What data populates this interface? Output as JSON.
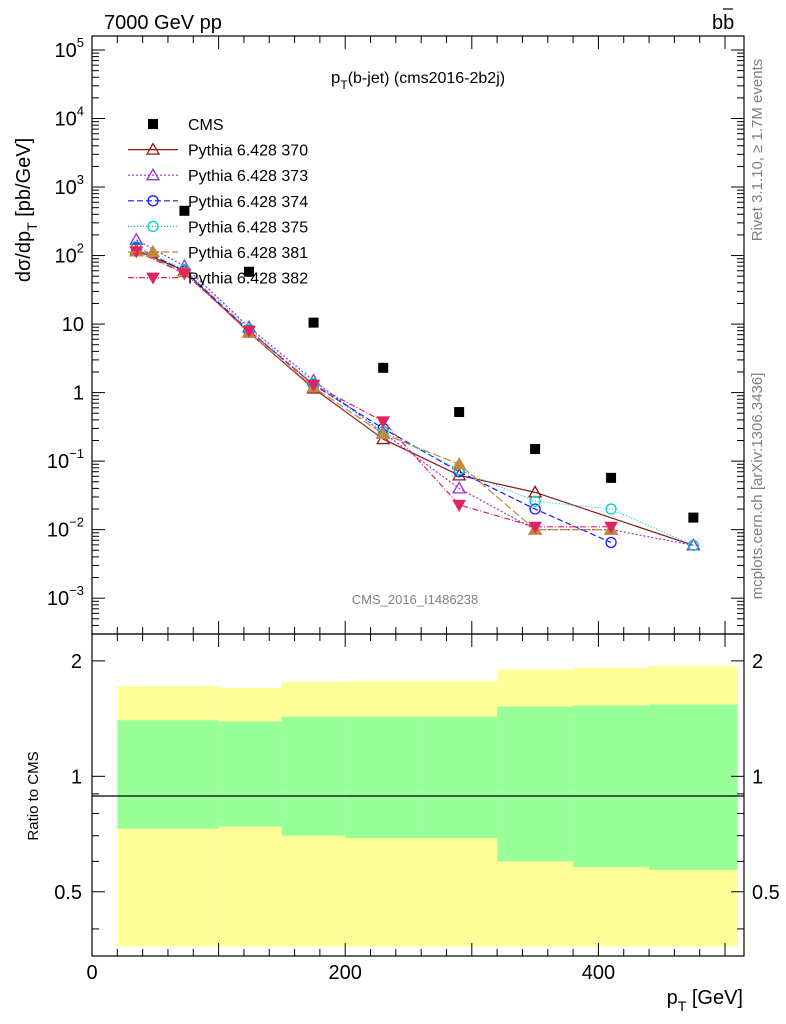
{
  "header": {
    "energy_label": "7000 GeV pp",
    "process_base": "b",
    "process_bar": "b"
  },
  "plot_title": {
    "main": "p",
    "sub": "T",
    "rest": "(b-jet) (cms2016-2b2j)"
  },
  "y_label": {
    "part1": "dσ/dp",
    "sub": "T",
    "part2": " [pb/GeV]"
  },
  "x_label": {
    "main": "p",
    "sub": "T",
    "rest": " [GeV]"
  },
  "ratio_label": "Ratio to CMS",
  "right_side": {
    "rivet_text": "Rivet 3.1.10, ≥ 1.7M events",
    "mcplots_text": "mcplots.cern.ch [arXiv:1306.3436]"
  },
  "watermark": "CMS_2016_I1486238",
  "y_ticks": [
    {
      "v": 100000.0,
      "base": "10",
      "exp": "5"
    },
    {
      "v": 10000.0,
      "base": "10",
      "exp": "4"
    },
    {
      "v": 1000.0,
      "base": "10",
      "exp": "3"
    },
    {
      "v": 100.0,
      "base": "10",
      "exp": "2"
    },
    {
      "v": 10,
      "base": "10",
      "exp": ""
    },
    {
      "v": 1,
      "base": "1",
      "exp": ""
    },
    {
      "v": 0.1,
      "base": "10",
      "exp": "−1"
    },
    {
      "v": 0.01,
      "base": "10",
      "exp": "−2"
    },
    {
      "v": 0.001,
      "base": "10",
      "exp": "−3"
    }
  ],
  "x_ticks": [
    {
      "v": 0,
      "label": "0"
    },
    {
      "v": 200,
      "label": "200"
    },
    {
      "v": 400,
      "label": "400"
    }
  ],
  "ratio_ticks": [
    {
      "v": 2,
      "label": "2"
    },
    {
      "v": 1,
      "label": "1"
    },
    {
      "v": 0.5,
      "label": "0.5"
    }
  ],
  "chart_data": {
    "type": "scatter",
    "x_range": [
      0,
      515
    ],
    "y_range": [
      0.0003,
      160000
    ],
    "y_scale": "log",
    "ratio_range": [
      0.34,
      2.35
    ],
    "legend_position": "top-left",
    "bins": [
      {
        "lo": 20,
        "hi": 100
      },
      {
        "lo": 100,
        "hi": 150
      },
      {
        "lo": 150,
        "hi": 200
      },
      {
        "lo": 200,
        "hi": 260
      },
      {
        "lo": 260,
        "hi": 320
      },
      {
        "lo": 320,
        "hi": 380
      },
      {
        "lo": 380,
        "hi": 440
      },
      {
        "lo": 440,
        "hi": 510
      }
    ],
    "band_inner": [
      [
        0.73,
        1.4
      ],
      [
        0.74,
        1.39
      ],
      [
        0.7,
        1.43
      ],
      [
        0.69,
        1.43
      ],
      [
        0.69,
        1.43
      ],
      [
        0.6,
        1.52
      ],
      [
        0.58,
        1.53
      ],
      [
        0.57,
        1.54
      ]
    ],
    "band_outer": [
      [
        0.36,
        1.72
      ],
      [
        0.36,
        1.7
      ],
      [
        0.36,
        1.76
      ],
      [
        0.36,
        1.77
      ],
      [
        0.36,
        1.77
      ],
      [
        0.36,
        1.9
      ],
      [
        0.36,
        1.92
      ],
      [
        0.36,
        1.94
      ]
    ],
    "series": [
      {
        "name": "CMS",
        "color": "#000000",
        "marker": "square",
        "dash": "",
        "x": [
          73,
          124,
          175,
          230,
          290,
          350,
          410,
          475
        ],
        "y": [
          450,
          58,
          10.5,
          2.3,
          0.52,
          0.15,
          0.057,
          0.015
        ]
      },
      {
        "name": "Pythia 6.428 370",
        "color": "#8b1a1a",
        "marker": "tri-open",
        "dash": "",
        "x": [
          35,
          73,
          124,
          175,
          230,
          290,
          350,
          475
        ],
        "y": [
          120,
          60,
          7.5,
          1.15,
          0.21,
          0.062,
          0.035,
          0.0059
        ]
      },
      {
        "name": "Pythia 6.428 373",
        "color": "#9b30d0",
        "marker": "tri-open",
        "dash": "2,2",
        "x": [
          35,
          73,
          124,
          175,
          230,
          290,
          350,
          410,
          475
        ],
        "y": [
          170,
          70,
          9,
          1.5,
          0.26,
          0.04,
          0.01,
          0.01,
          0.0059
        ]
      },
      {
        "name": "Pythia 6.428 374",
        "color": "#1a1aff",
        "marker": "circle-open",
        "dash": "6,3",
        "x": [
          35,
          73,
          124,
          175,
          230,
          290,
          350,
          410
        ],
        "y": [
          130,
          60,
          8,
          1.3,
          0.3,
          0.07,
          0.02,
          0.0065
        ]
      },
      {
        "name": "Pythia 6.428 375",
        "color": "#00cfc8",
        "marker": "circle-open",
        "dash": "1,2",
        "x": [
          35,
          73,
          124,
          175,
          230,
          290,
          350,
          410,
          475
        ],
        "y": [
          135,
          62,
          8.5,
          1.35,
          0.27,
          0.075,
          0.026,
          0.02,
          0.0059
        ]
      },
      {
        "name": "Pythia 6.428 381",
        "color": "#c08a3a",
        "marker": "tri-filled",
        "dash": "8,3",
        "x": [
          35,
          73,
          124,
          175,
          230,
          290,
          350,
          410
        ],
        "y": [
          115,
          57,
          7.5,
          1.2,
          0.25,
          0.09,
          0.01,
          0.01
        ]
      },
      {
        "name": "Pythia 6.428 382",
        "color": "#e0245e",
        "marker": "tri-down-filled",
        "dash": "6,2,1,2",
        "x": [
          35,
          73,
          124,
          175,
          230,
          290,
          350,
          410
        ],
        "y": [
          115,
          55,
          8,
          1.3,
          0.38,
          0.023,
          0.011,
          0.011
        ]
      }
    ]
  }
}
